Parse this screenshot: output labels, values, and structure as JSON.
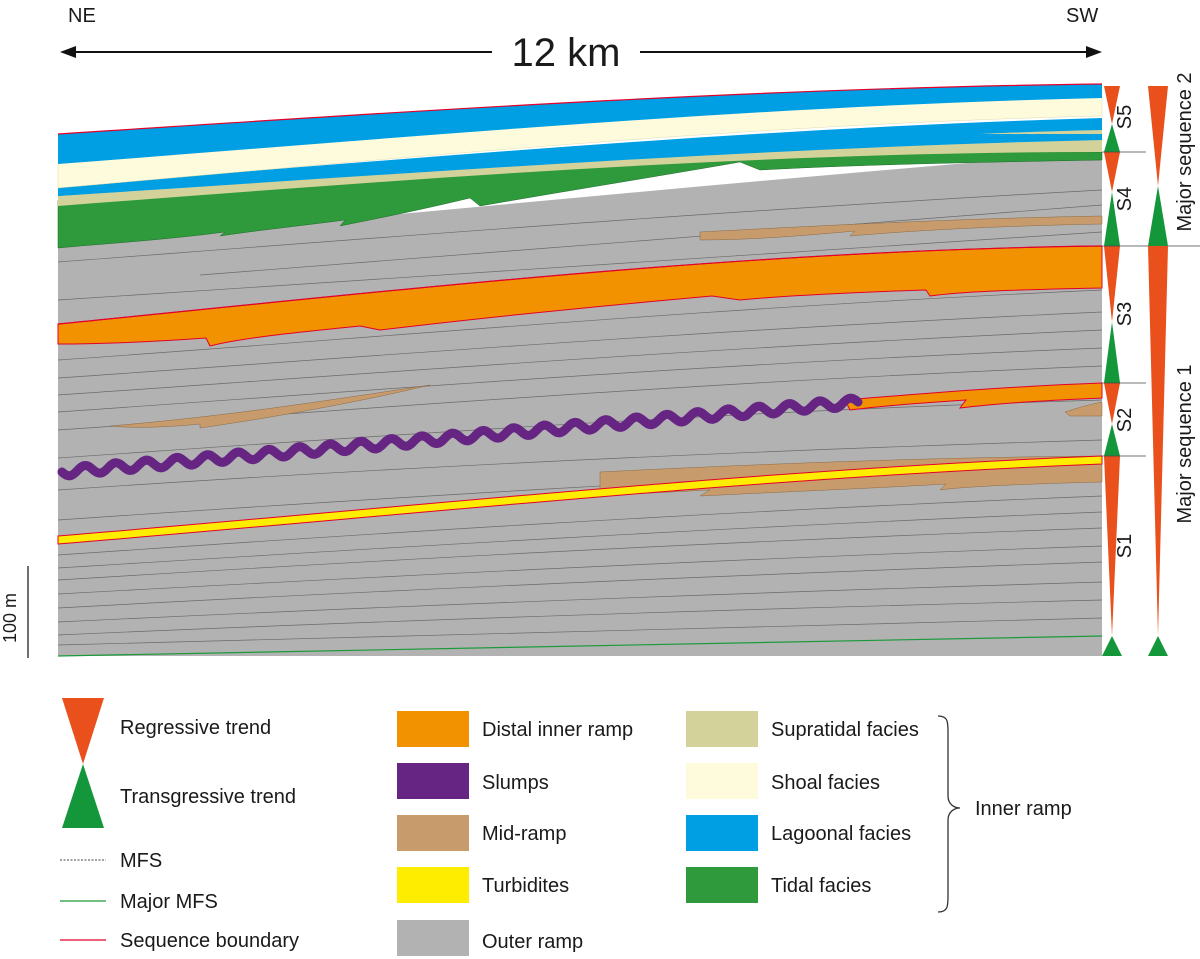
{
  "section": {
    "left_label": "NE",
    "right_label": "SW",
    "width_label": "12 km",
    "scale_bar_label": "100 m"
  },
  "sequences": {
    "minor": [
      "S1",
      "S2",
      "S3",
      "S4",
      "S5"
    ],
    "major": [
      "Major sequence 1",
      "Major sequence 2"
    ]
  },
  "legend": {
    "regressive": "Regressive trend",
    "transgressive": "Transgressive trend",
    "mfs": "MFS",
    "major_mfs": "Major MFS",
    "sequence_boundary": "Sequence boundary",
    "facies": [
      {
        "label": "Distal inner ramp",
        "color": "#f39200"
      },
      {
        "label": "Slumps",
        "color": "#662483"
      },
      {
        "label": "Mid-ramp",
        "color": "#c89b6c"
      },
      {
        "label": "Turbidites",
        "color": "#ffed00"
      },
      {
        "label": "Outer ramp",
        "color": "#b2b2b2"
      },
      {
        "label": "Supratidal facies",
        "color": "#d3d29b"
      },
      {
        "label": "Shoal facies",
        "color": "#fdfbdc"
      },
      {
        "label": "Lagoonal facies",
        "color": "#009fe3"
      },
      {
        "label": "Tidal facies",
        "color": "#2e9a3c"
      }
    ],
    "group_label": "Inner ramp"
  },
  "colors": {
    "regressive": "#e9501c",
    "transgressive": "#14973b",
    "sequence_boundary": "#e3002b",
    "major_mfs": "#1a9a3a"
  }
}
